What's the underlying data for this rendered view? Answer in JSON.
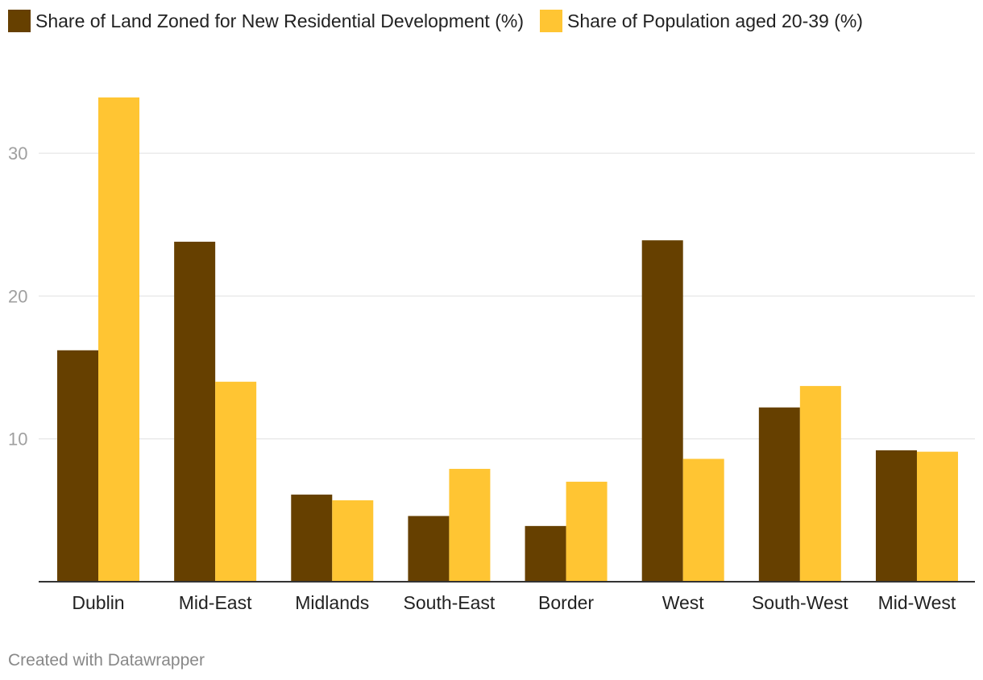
{
  "legend": {
    "series1_label": "Share of Land Zoned for New Residential Development (%)",
    "series2_label": "Share of Population aged 20-39 (%)"
  },
  "colors": {
    "series1": "#664000",
    "series2": "#ffc533"
  },
  "footer": {
    "credit": "Created with Datawrapper"
  },
  "chart_data": {
    "type": "bar",
    "title": "",
    "xlabel": "",
    "ylabel": "",
    "ylim": [
      0,
      35
    ],
    "yticks": [
      10,
      20,
      30
    ],
    "grid": true,
    "legend_position": "top-left",
    "categories": [
      "Dublin",
      "Mid-East",
      "Midlands",
      "South-East",
      "Border",
      "West",
      "South-West",
      "Mid-West"
    ],
    "series": [
      {
        "name": "Share of Land Zoned for New Residential Development (%)",
        "values": [
          16.2,
          23.8,
          6.1,
          4.6,
          3.9,
          23.9,
          12.2,
          9.2
        ]
      },
      {
        "name": "Share of Population aged 20-39 (%)",
        "values": [
          33.9,
          14.0,
          5.7,
          7.9,
          7.0,
          8.6,
          13.7,
          9.1
        ]
      }
    ]
  }
}
